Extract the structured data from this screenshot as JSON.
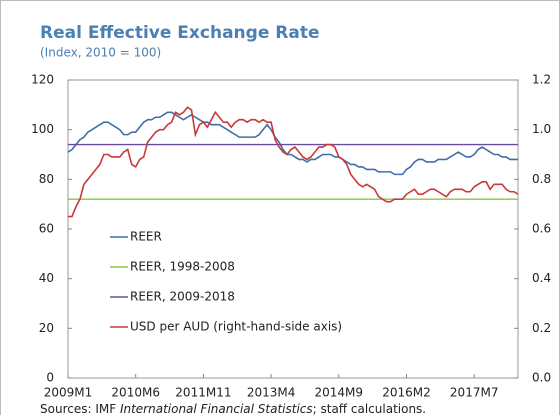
{
  "chart_data": {
    "type": "line",
    "title": "Real Effective Exchange Rate",
    "subtitle": "(Index, 2010 = 100)",
    "source": [
      "Sources: IMF ",
      "International Financial Statistics",
      "; staff calculations."
    ],
    "categories": [
      "2009M1",
      null,
      null,
      null,
      null,
      null,
      null,
      null,
      null,
      null,
      null,
      null,
      null,
      null,
      null,
      null,
      null,
      "2010M6",
      null,
      null,
      null,
      null,
      null,
      null,
      null,
      null,
      null,
      null,
      null,
      null,
      null,
      null,
      null,
      null,
      "2011M11",
      null,
      null,
      null,
      null,
      null,
      null,
      null,
      null,
      null,
      null,
      null,
      null,
      null,
      null,
      null,
      null,
      "2013M4",
      null,
      null,
      null,
      null,
      null,
      null,
      null,
      null,
      null,
      null,
      null,
      null,
      null,
      null,
      null,
      null,
      "2014M9",
      null,
      null,
      null,
      null,
      null,
      null,
      null,
      null,
      null,
      null,
      null,
      null,
      null,
      null,
      null,
      null,
      "2016M2",
      null,
      null,
      null,
      null,
      null,
      null,
      null,
      null,
      null,
      null,
      null,
      null,
      null,
      null,
      null,
      null,
      "2017M7",
      null,
      null,
      null,
      null,
      null,
      null,
      null,
      null,
      null,
      null,
      null
    ],
    "ylim": [
      0,
      120
    ],
    "yticks": [
      0,
      20,
      40,
      60,
      80,
      100,
      120
    ],
    "y2lim": [
      0,
      1.2
    ],
    "y2ticks": [
      {
        "value": 0,
        "label": "0.0"
      },
      0.2,
      0.4,
      0.6,
      0.8,
      {
        "value": 1,
        "label": "1.0"
      },
      1.2
    ],
    "grid": false,
    "series": [
      {
        "name": "REER",
        "color": "#3f6fa8",
        "values": [
          91,
          92,
          94,
          96,
          97,
          99,
          100,
          101,
          102,
          103,
          103,
          102,
          101,
          100,
          98,
          98,
          99,
          99,
          101,
          103,
          104,
          104,
          105,
          105,
          106,
          107,
          107,
          106,
          105,
          104,
          105,
          106,
          105,
          104,
          103,
          103,
          102,
          102,
          102,
          101,
          100,
          99,
          98,
          97,
          97,
          97,
          97,
          97,
          98,
          100,
          102,
          100,
          97,
          95,
          92,
          90,
          90,
          89,
          88,
          88,
          87,
          88,
          88,
          89,
          90,
          90,
          90,
          89,
          89,
          88,
          87,
          86,
          86,
          85,
          85,
          84,
          84,
          84,
          83,
          83,
          83,
          83,
          82,
          82,
          82,
          84,
          85,
          87,
          88,
          88,
          87,
          87,
          87,
          88,
          88,
          88,
          89,
          90,
          91,
          90,
          89,
          89,
          90,
          92,
          93,
          92,
          91,
          90,
          90,
          89,
          89,
          88,
          88,
          88
        ]
      },
      {
        "name": "REER, 1998-2008",
        "color": "#8cc63f",
        "value": 72
      },
      {
        "name": "REER, 2009-2018",
        "color": "#6a4c9c",
        "value": 94
      },
      {
        "name": "USD per AUD (right-hand-side axis)",
        "color": "#c9393b",
        "axis": "y2",
        "values": [
          0.65,
          0.65,
          0.69,
          0.72,
          0.78,
          0.8,
          0.82,
          0.84,
          0.86,
          0.9,
          0.9,
          0.89,
          0.89,
          0.89,
          0.91,
          0.92,
          0.86,
          0.85,
          0.88,
          0.89,
          0.95,
          0.97,
          0.99,
          1.0,
          1.0,
          1.02,
          1.03,
          1.07,
          1.06,
          1.07,
          1.09,
          1.08,
          0.98,
          1.02,
          1.03,
          1.01,
          1.04,
          1.07,
          1.05,
          1.03,
          1.03,
          1.01,
          1.03,
          1.04,
          1.04,
          1.03,
          1.04,
          1.04,
          1.03,
          1.04,
          1.03,
          1.03,
          0.96,
          0.93,
          0.91,
          0.9,
          0.92,
          0.93,
          0.91,
          0.89,
          0.88,
          0.89,
          0.91,
          0.93,
          0.93,
          0.94,
          0.94,
          0.93,
          0.89,
          0.88,
          0.86,
          0.82,
          0.8,
          0.78,
          0.77,
          0.78,
          0.77,
          0.76,
          0.73,
          0.72,
          0.71,
          0.71,
          0.72,
          0.72,
          0.72,
          0.74,
          0.75,
          0.76,
          0.74,
          0.74,
          0.75,
          0.76,
          0.76,
          0.75,
          0.74,
          0.73,
          0.75,
          0.76,
          0.76,
          0.76,
          0.75,
          0.75,
          0.77,
          0.78,
          0.79,
          0.79,
          0.76,
          0.78,
          0.78,
          0.78,
          0.76,
          0.75,
          0.75,
          0.74
        ]
      }
    ]
  }
}
